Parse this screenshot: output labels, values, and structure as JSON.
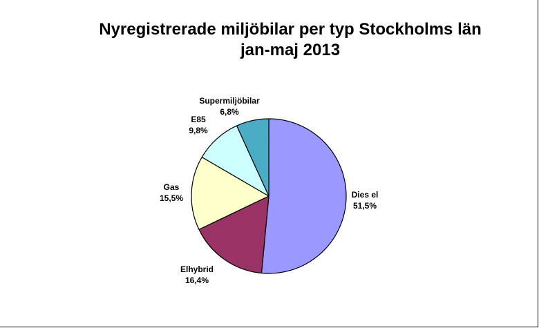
{
  "chart_data": {
    "type": "pie",
    "title_line1": "Nyregistrerade miljöbilar per typ Stockholms län",
    "title_line2": "jan-maj 2013",
    "slices": [
      {
        "label": "Diesel",
        "display_label": "Dies el",
        "value": 51.5,
        "value_label": "51,5%",
        "color": "#9999FF"
      },
      {
        "label": "Elhybrid",
        "display_label": "Elhybrid",
        "value": 16.4,
        "value_label": "16,4%",
        "color": "#993366"
      },
      {
        "label": "Gas",
        "display_label": "Gas",
        "value": 15.5,
        "value_label": "15,5%",
        "color": "#FFFFCC"
      },
      {
        "label": "E85",
        "display_label": "E85",
        "value": 9.8,
        "value_label": "9,8%",
        "color": "#CCFFFF"
      },
      {
        "label": "Supermiljöbilar",
        "display_label": "Supermiljöbilar",
        "value": 6.8,
        "value_label": "6,8%",
        "color": "#4BACC6"
      }
    ],
    "start_angle_deg": 0,
    "direction": "clockwise",
    "legend": "none"
  }
}
